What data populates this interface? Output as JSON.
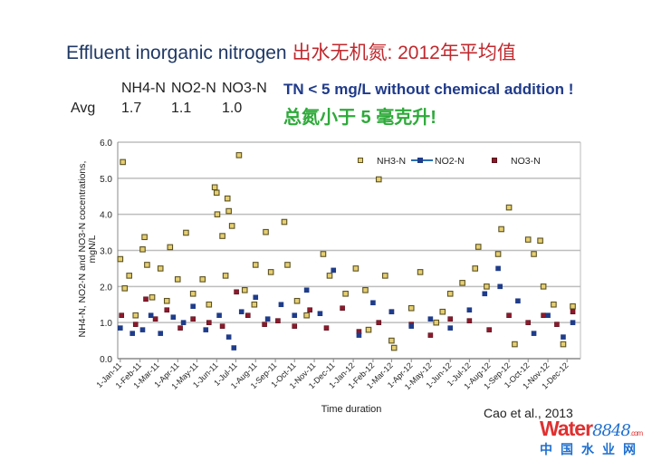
{
  "title": {
    "en": "Effluent inorganic nitrogen ",
    "cn": "出水无机氮: 2012年平均值"
  },
  "avg_table": {
    "headers": [
      "NH4-N",
      "NO2-N",
      "NO3-N"
    ],
    "row_label": "Avg",
    "values": [
      "1.7",
      "1.1",
      "1.0"
    ]
  },
  "note_en": "TN < 5 mg/L without chemical addition !",
  "note_cn": "总氮小于 5 毫克升!",
  "citation": "Cao et al., 2013",
  "watermark": {
    "brand": "Water",
    "number": "8848",
    "suffix": ".com",
    "cn": "中国水业网"
  },
  "chart_data": {
    "type": "scatter",
    "xlabel": "Time duration",
    "ylabel": [
      "NH4-N,  NO2-N and NO3-N cocentrations,",
      "mgN/L"
    ],
    "ylim": [
      0,
      6
    ],
    "yticks": [
      "0.0",
      "1.0",
      "2.0",
      "3.0",
      "4.0",
      "5.0",
      "6.0"
    ],
    "xlim": [
      "2010-12-28",
      "2012-12-22"
    ],
    "xticks": [
      "1-Jan-11",
      "1-Feb-11",
      "1-Mar-11",
      "1-Apr-11",
      "1-May-11",
      "1-Jun-11",
      "1-Jul-11",
      "1-Aug-11",
      "1-Sep-11",
      "1-Oct-11",
      "1-Nov-11",
      "1-Dec-11",
      "1-Jan-12",
      "1-Feb-12",
      "1-Mar-12",
      "1-Apr-12",
      "1-May-12",
      "1-Jun-12",
      "1-Jul-12",
      "1-Aug-12",
      "1-Sep-12",
      "1-Oct-12",
      "1-Nov-12",
      "1-Dec-12"
    ],
    "grid": "horizontal",
    "legend": "top-right",
    "series": [
      {
        "name": "NH3-N",
        "color": "#e6cf72",
        "edge": "#5c5222",
        "points": [
          [
            "2011-01-01",
            2.76
          ],
          [
            "2011-01-05",
            5.45
          ],
          [
            "2011-01-08",
            1.95
          ],
          [
            "2011-01-15",
            2.3
          ],
          [
            "2011-01-25",
            1.2
          ],
          [
            "2011-02-05",
            3.03
          ],
          [
            "2011-02-08",
            3.37
          ],
          [
            "2011-02-12",
            2.6
          ],
          [
            "2011-02-20",
            1.7
          ],
          [
            "2011-03-05",
            2.5
          ],
          [
            "2011-03-15",
            1.6
          ],
          [
            "2011-03-20",
            3.09
          ],
          [
            "2011-04-01",
            2.2
          ],
          [
            "2011-04-14",
            3.49
          ],
          [
            "2011-04-25",
            1.8
          ],
          [
            "2011-05-10",
            2.2
          ],
          [
            "2011-05-20",
            1.5
          ],
          [
            "2011-05-29",
            4.75
          ],
          [
            "2011-06-01",
            4.6
          ],
          [
            "2011-06-02",
            4.0
          ],
          [
            "2011-06-10",
            3.4
          ],
          [
            "2011-06-15",
            2.3
          ],
          [
            "2011-06-18",
            4.44
          ],
          [
            "2011-06-20",
            4.09
          ],
          [
            "2011-06-25",
            3.68
          ],
          [
            "2011-07-06",
            5.64
          ],
          [
            "2011-07-15",
            1.9
          ],
          [
            "2011-07-30",
            1.5
          ],
          [
            "2011-08-01",
            2.6
          ],
          [
            "2011-08-17",
            3.51
          ],
          [
            "2011-08-25",
            2.4
          ],
          [
            "2011-09-15",
            3.79
          ],
          [
            "2011-09-20",
            2.6
          ],
          [
            "2011-10-05",
            1.6
          ],
          [
            "2011-10-20",
            1.2
          ],
          [
            "2011-11-15",
            2.9
          ],
          [
            "2011-11-25",
            2.3
          ],
          [
            "2011-12-20",
            1.8
          ],
          [
            "2012-01-05",
            2.5
          ],
          [
            "2012-01-20",
            1.9
          ],
          [
            "2012-01-25",
            0.8
          ],
          [
            "2012-02-10",
            4.97
          ],
          [
            "2012-02-20",
            2.3
          ],
          [
            "2012-03-01",
            0.5
          ],
          [
            "2012-03-05",
            0.3
          ],
          [
            "2012-04-01",
            1.4
          ],
          [
            "2012-04-15",
            2.4
          ],
          [
            "2012-05-10",
            1.0
          ],
          [
            "2012-05-20",
            1.3
          ],
          [
            "2012-06-01",
            1.8
          ],
          [
            "2012-06-20",
            2.1
          ],
          [
            "2012-07-10",
            2.5
          ],
          [
            "2012-07-15",
            3.1
          ],
          [
            "2012-07-28",
            2.0
          ],
          [
            "2012-08-15",
            2.9
          ],
          [
            "2012-08-20",
            3.59
          ],
          [
            "2012-09-01",
            4.19
          ],
          [
            "2012-09-10",
            0.4
          ],
          [
            "2012-10-01",
            3.3
          ],
          [
            "2012-10-10",
            2.9
          ],
          [
            "2012-10-20",
            3.27
          ],
          [
            "2012-10-25",
            2.0
          ],
          [
            "2012-11-10",
            1.5
          ],
          [
            "2012-11-25",
            0.4
          ],
          [
            "2012-12-10",
            1.45
          ]
        ]
      },
      {
        "name": "NO2-N",
        "color": "#1f3c8a",
        "edge": "#1f3c8a",
        "points": [
          [
            "2011-01-01",
            0.85
          ],
          [
            "2011-01-20",
            0.7
          ],
          [
            "2011-02-05",
            0.8
          ],
          [
            "2011-02-18",
            1.2
          ],
          [
            "2011-03-05",
            0.7
          ],
          [
            "2011-03-25",
            1.15
          ],
          [
            "2011-04-10",
            1.0
          ],
          [
            "2011-04-25",
            1.45
          ],
          [
            "2011-05-15",
            0.8
          ],
          [
            "2011-06-05",
            1.2
          ],
          [
            "2011-06-20",
            0.6
          ],
          [
            "2011-06-28",
            0.3
          ],
          [
            "2011-07-10",
            1.3
          ],
          [
            "2011-08-01",
            1.7
          ],
          [
            "2011-08-20",
            1.1
          ],
          [
            "2011-09-10",
            1.5
          ],
          [
            "2011-10-01",
            1.2
          ],
          [
            "2011-10-20",
            1.9
          ],
          [
            "2011-11-10",
            1.25
          ],
          [
            "2011-12-01",
            2.45
          ],
          [
            "2012-01-10",
            0.65
          ],
          [
            "2012-02-01",
            1.55
          ],
          [
            "2012-03-01",
            1.3
          ],
          [
            "2012-04-01",
            0.9
          ],
          [
            "2012-05-01",
            1.1
          ],
          [
            "2012-06-01",
            0.85
          ],
          [
            "2012-07-01",
            1.35
          ],
          [
            "2012-07-25",
            1.8
          ],
          [
            "2012-08-15",
            2.5
          ],
          [
            "2012-08-18",
            2.0
          ],
          [
            "2012-09-15",
            1.6
          ],
          [
            "2012-10-10",
            0.7
          ],
          [
            "2012-11-01",
            1.2
          ],
          [
            "2012-11-25",
            0.6
          ],
          [
            "2012-12-10",
            1.0
          ]
        ]
      },
      {
        "name": "NO3-N",
        "color": "#8b1a2c",
        "edge": "#5a0f1a",
        "points": [
          [
            "2011-01-03",
            1.2
          ],
          [
            "2011-01-25",
            0.95
          ],
          [
            "2011-02-10",
            1.65
          ],
          [
            "2011-02-25",
            1.1
          ],
          [
            "2011-03-15",
            1.35
          ],
          [
            "2011-04-05",
            0.85
          ],
          [
            "2011-04-25",
            1.1
          ],
          [
            "2011-05-20",
            1.0
          ],
          [
            "2011-06-10",
            0.9
          ],
          [
            "2011-07-02",
            1.85
          ],
          [
            "2011-07-20",
            1.2
          ],
          [
            "2011-08-15",
            0.95
          ],
          [
            "2011-09-05",
            1.05
          ],
          [
            "2011-10-01",
            0.9
          ],
          [
            "2011-10-25",
            1.35
          ],
          [
            "2011-11-20",
            0.85
          ],
          [
            "2011-12-15",
            1.4
          ],
          [
            "2012-01-10",
            0.75
          ],
          [
            "2012-02-10",
            1.0
          ],
          [
            "2012-03-01",
            1.3
          ],
          [
            "2012-04-01",
            0.95
          ],
          [
            "2012-05-01",
            0.65
          ],
          [
            "2012-06-01",
            1.1
          ],
          [
            "2012-07-01",
            1.05
          ],
          [
            "2012-08-01",
            0.8
          ],
          [
            "2012-09-01",
            1.2
          ],
          [
            "2012-10-01",
            1.0
          ],
          [
            "2012-10-25",
            1.2
          ],
          [
            "2012-11-15",
            0.95
          ],
          [
            "2012-12-10",
            1.3
          ]
        ]
      }
    ]
  }
}
